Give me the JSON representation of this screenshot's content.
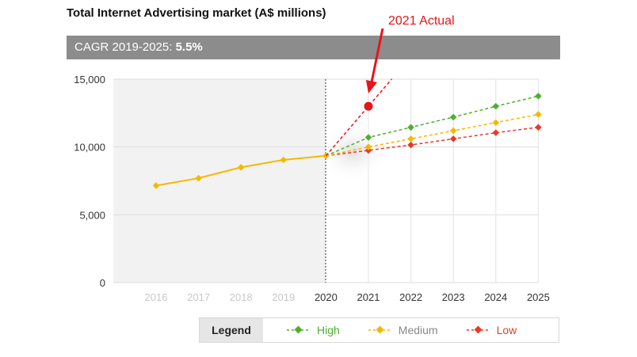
{
  "title": "Total Internet Advertising market (A$ millions)",
  "cagr": {
    "label": "CAGR 2019-2025:",
    "value": "5.5%"
  },
  "annotation": {
    "text": "2021 Actual",
    "color": "#e8141b"
  },
  "legend": {
    "title": "Legend",
    "items": [
      {
        "name": "High",
        "color": "#4caf2e"
      },
      {
        "name": "Medium",
        "color": "#f5b800"
      },
      {
        "name": "Low",
        "color": "#e53b2c"
      }
    ]
  },
  "chart_data": {
    "type": "line",
    "x": [
      "2016",
      "2017",
      "2018",
      "2019",
      "2020",
      "2021",
      "2022",
      "2023",
      "2024",
      "2025"
    ],
    "ylim": [
      0,
      15000
    ],
    "yticks": [
      "0",
      "5,000",
      "10,000",
      "15,000"
    ],
    "historical": {
      "color": "#f5b800",
      "x": [
        "2016",
        "2017",
        "2018",
        "2019",
        "2020"
      ],
      "values": [
        7150,
        7700,
        8500,
        9050,
        9350
      ]
    },
    "series": [
      {
        "name": "High",
        "color": "#4caf2e",
        "x": [
          "2020",
          "2021",
          "2022",
          "2023",
          "2024",
          "2025"
        ],
        "values": [
          9350,
          10700,
          11450,
          12200,
          13000,
          13750
        ]
      },
      {
        "name": "Medium",
        "color": "#f5b800",
        "x": [
          "2020",
          "2021",
          "2022",
          "2023",
          "2024",
          "2025"
        ],
        "values": [
          9350,
          10000,
          10600,
          11200,
          11800,
          12400
        ]
      },
      {
        "name": "Low",
        "color": "#e53b2c",
        "x": [
          "2020",
          "2021",
          "2022",
          "2023",
          "2024",
          "2025"
        ],
        "values": [
          9350,
          9750,
          10150,
          10600,
          11050,
          11450
        ]
      }
    ],
    "actual_2021": {
      "x": "2021",
      "value": 13000
    },
    "grid": true
  }
}
